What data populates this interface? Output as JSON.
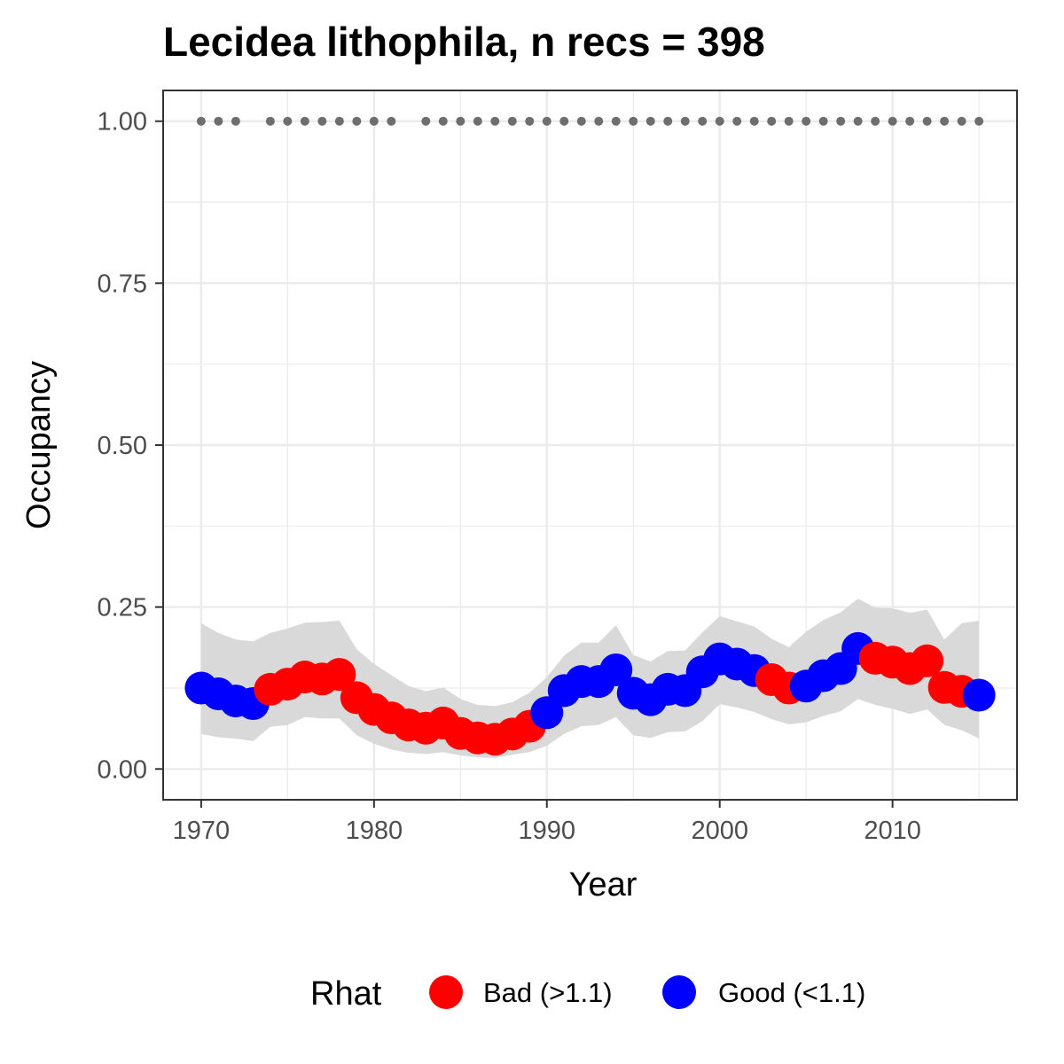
{
  "chart_data": {
    "type": "line",
    "title": "Lecidea lithophila, n recs = 398",
    "xlabel": "Year",
    "ylabel": "Occupancy",
    "xlim": [
      1967.8,
      1017.2
    ],
    "ylim": [
      -0.0475,
      1.0475
    ],
    "x_ticks": [
      1970,
      1980,
      1990,
      2000,
      2010
    ],
    "x_tick_labels": [
      "1970",
      "1980",
      "1990",
      "2000",
      "2010"
    ],
    "y_ticks": [
      0,
      0.25,
      0.5,
      0.75,
      1.0
    ],
    "y_tick_labels": [
      "0.00",
      "0.25",
      "0.50",
      "0.75",
      "1.00"
    ],
    "grid": true,
    "legend": {
      "title": "Rhat",
      "position": "bottom",
      "items": [
        {
          "label": "Bad (>1.1)",
          "color": "#ff0000"
        },
        {
          "label": "Good (<1.1)",
          "color": "#0000ff"
        }
      ]
    },
    "colors": {
      "Bad": "#ff0000",
      "Good": "#0000ff",
      "band": "#d9d9d9",
      "record_dots": "#6e6e6e"
    },
    "series": [
      {
        "x": [
          1970,
          1971,
          1972,
          1973,
          1974,
          1975,
          1976,
          1977,
          1978,
          1979,
          1980,
          1981,
          1982,
          1983,
          1984,
          1985,
          1986,
          1987,
          1988,
          1989,
          1990,
          1991,
          1992,
          1993,
          1994,
          1995,
          1996,
          1997,
          1998,
          1999,
          2000,
          2001,
          2002,
          2003,
          2004,
          2005,
          2006,
          2007,
          2008,
          2009,
          2010,
          2011,
          2012,
          2013,
          2014,
          2015
        ],
        "y": [
          0.125,
          0.116,
          0.105,
          0.101,
          0.123,
          0.131,
          0.142,
          0.139,
          0.146,
          0.11,
          0.092,
          0.079,
          0.068,
          0.063,
          0.071,
          0.055,
          0.048,
          0.046,
          0.054,
          0.066,
          0.087,
          0.121,
          0.135,
          0.135,
          0.153,
          0.117,
          0.107,
          0.123,
          0.121,
          0.15,
          0.17,
          0.162,
          0.152,
          0.138,
          0.125,
          0.128,
          0.144,
          0.155,
          0.186,
          0.171,
          0.165,
          0.155,
          0.167,
          0.126,
          0.12,
          0.114
        ],
        "lower": [
          0.054,
          0.049,
          0.047,
          0.043,
          0.065,
          0.068,
          0.08,
          0.078,
          0.078,
          0.052,
          0.039,
          0.03,
          0.025,
          0.023,
          0.026,
          0.021,
          0.018,
          0.017,
          0.022,
          0.026,
          0.036,
          0.054,
          0.066,
          0.068,
          0.08,
          0.052,
          0.048,
          0.057,
          0.058,
          0.074,
          0.1,
          0.095,
          0.088,
          0.077,
          0.069,
          0.072,
          0.082,
          0.089,
          0.108,
          0.099,
          0.093,
          0.085,
          0.092,
          0.068,
          0.06,
          0.047
        ],
        "upper": [
          0.225,
          0.21,
          0.2,
          0.197,
          0.21,
          0.217,
          0.226,
          0.227,
          0.229,
          0.185,
          0.162,
          0.145,
          0.128,
          0.12,
          0.126,
          0.108,
          0.099,
          0.097,
          0.103,
          0.118,
          0.142,
          0.175,
          0.195,
          0.195,
          0.222,
          0.176,
          0.166,
          0.182,
          0.183,
          0.211,
          0.236,
          0.228,
          0.22,
          0.201,
          0.188,
          0.212,
          0.23,
          0.242,
          0.263,
          0.249,
          0.248,
          0.241,
          0.246,
          0.2,
          0.225,
          0.229
        ],
        "rhat": [
          "Good",
          "Good",
          "Good",
          "Good",
          "Bad",
          "Bad",
          "Bad",
          "Bad",
          "Bad",
          "Bad",
          "Bad",
          "Bad",
          "Bad",
          "Bad",
          "Bad",
          "Bad",
          "Bad",
          "Bad",
          "Bad",
          "Bad",
          "Good",
          "Good",
          "Good",
          "Good",
          "Good",
          "Good",
          "Good",
          "Good",
          "Good",
          "Good",
          "Good",
          "Good",
          "Good",
          "Bad",
          "Bad",
          "Good",
          "Good",
          "Good",
          "Good",
          "Bad",
          "Bad",
          "Bad",
          "Bad",
          "Bad",
          "Bad",
          "Good"
        ]
      }
    ],
    "record_years": [
      1970,
      1971,
      1972,
      1974,
      1975,
      1976,
      1977,
      1978,
      1979,
      1980,
      1981,
      1983,
      1984,
      1985,
      1986,
      1987,
      1988,
      1989,
      1990,
      1991,
      1992,
      1993,
      1994,
      1995,
      1996,
      1997,
      1998,
      1999,
      2000,
      2001,
      2002,
      2003,
      2004,
      2005,
      2006,
      2007,
      2008,
      2009,
      2010,
      2011,
      2012,
      2013,
      2014,
      2015
    ],
    "record_y": 1.0
  }
}
